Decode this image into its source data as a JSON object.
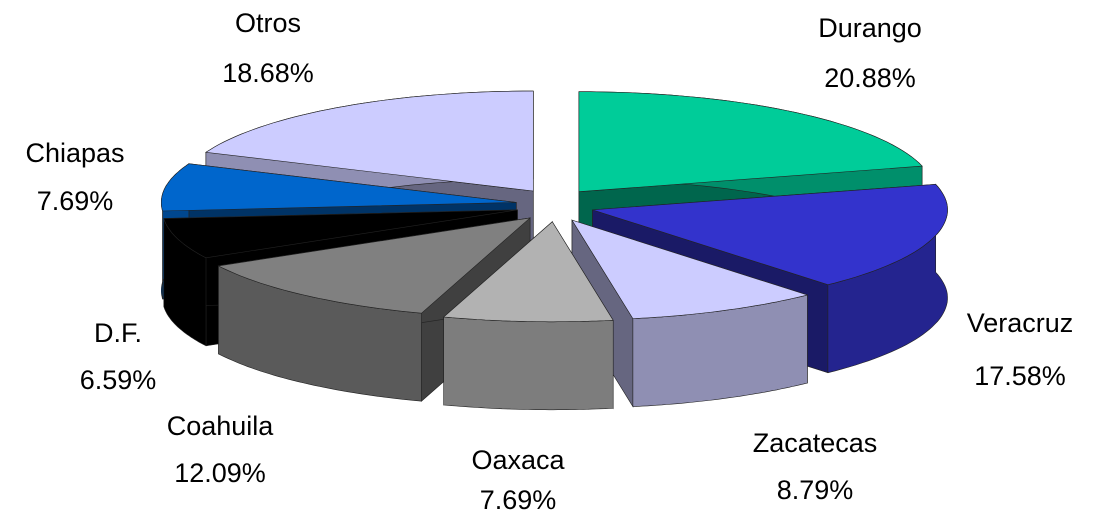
{
  "chart_data": {
    "type": "pie",
    "categories": [
      "Durango",
      "Veracruz",
      "Zacatecas",
      "Oaxaca",
      "Coahuila",
      "D.F.",
      "Chiapas",
      "Otros"
    ],
    "values": [
      20.88,
      17.58,
      8.79,
      7.69,
      12.09,
      6.59,
      7.69,
      18.68
    ],
    "value_labels": [
      "20.88%",
      "17.58%",
      "8.79%",
      "7.69%",
      "12.09%",
      "6.59%",
      "7.69%",
      "18.68%"
    ],
    "colors": [
      "#00cc99",
      "#3333cc",
      "#ccccff",
      "#b2b2b2",
      "#808080",
      "#000000",
      "#0066cc",
      "#ccccff"
    ],
    "exploded": true,
    "three_d": true
  }
}
